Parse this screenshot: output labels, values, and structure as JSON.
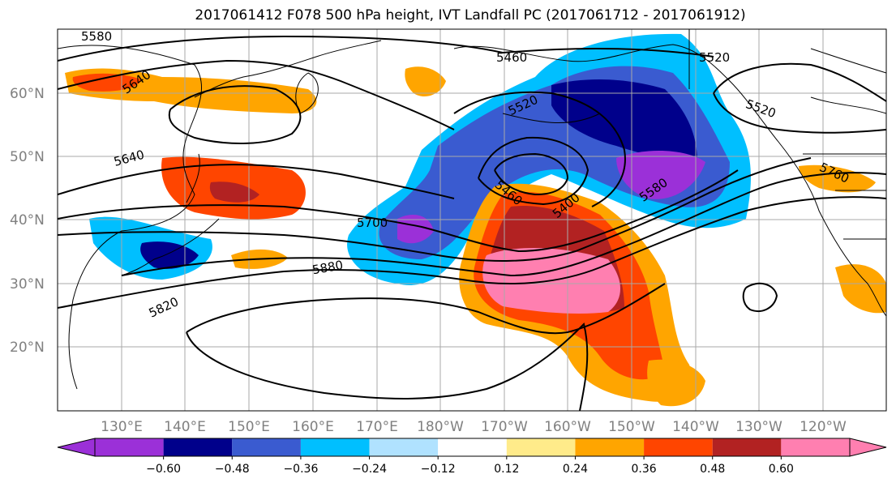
{
  "title": "2017061412 F078 500 hPa height, IVT Landfall PC (2017061712 - 2017061912)",
  "lat_labels": [
    "60°N",
    "50°N",
    "40°N",
    "30°N",
    "20°N"
  ],
  "lon_labels": [
    "130°E",
    "140°E",
    "150°E",
    "160°E",
    "170°E",
    "180°W",
    "170°W",
    "160°W",
    "150°W",
    "140°W",
    "130°W",
    "120°W"
  ],
  "contour_labels": [
    "5580",
    "5640",
    "5460",
    "5520",
    "5520",
    "5520",
    "5640",
    "5460",
    "5400",
    "5580",
    "5760",
    "5700",
    "5880",
    "5820"
  ],
  "colorbar": {
    "ticks": [
      "−0.60",
      "−0.48",
      "−0.36",
      "−0.24",
      "−0.12",
      "0.12",
      "0.24",
      "0.36",
      "0.48",
      "0.60"
    ],
    "colors": [
      "#9b30d8",
      "#00008b",
      "#3a5bd0",
      "#00bfff",
      "#b0e2ff",
      "#ffffff",
      "#ffeb8a",
      "#ffa500",
      "#ff4500",
      "#b22222",
      "#ff7fb0"
    ]
  },
  "legend_colors": {
    "land_outline": "#000000",
    "grid": "#a9a9a9",
    "label_gray": "#808080"
  }
}
